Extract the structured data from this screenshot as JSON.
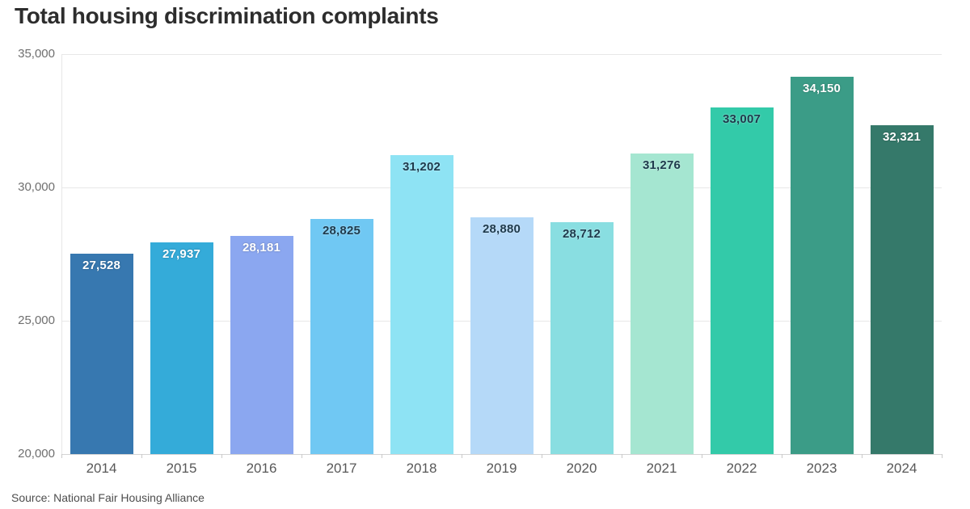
{
  "title": "Total housing discrimination complaints",
  "source": "Source: National Fair Housing Alliance",
  "chart_data": {
    "type": "bar",
    "title": "Total housing discrimination complaints",
    "xlabel": "",
    "ylabel": "",
    "categories": [
      "2014",
      "2015",
      "2016",
      "2017",
      "2018",
      "2019",
      "2020",
      "2021",
      "2022",
      "2023",
      "2024"
    ],
    "values": [
      27528,
      27937,
      28181,
      28825,
      31202,
      28880,
      28712,
      31276,
      33007,
      34150,
      32321
    ],
    "value_labels": [
      "27,528",
      "27,937",
      "28,181",
      "28,825",
      "31,202",
      "28,880",
      "28,712",
      "31,276",
      "33,007",
      "34,150",
      "32,321"
    ],
    "bar_colors": [
      "#3778b0",
      "#34abd9",
      "#8ba7f0",
      "#70c8f3",
      "#8ee3f4",
      "#b5d9f8",
      "#89dee1",
      "#a5e6d1",
      "#33caa9",
      "#3b9c87",
      "#35796a"
    ],
    "label_colors": [
      "#ffffff",
      "#ffffff",
      "#ffffff",
      "#1e3a4c",
      "#1e3a4c",
      "#1e3a4c",
      "#1e3a4c",
      "#1e3a4c",
      "#1e3a4c",
      "#ffffff",
      "#ffffff"
    ],
    "ylim": [
      20000,
      35000
    ],
    "yticks": [
      20000,
      25000,
      30000,
      35000
    ],
    "ytick_labels": [
      "20,000",
      "25,000",
      "30,000",
      "35,000"
    ],
    "grid": "horizontal",
    "legend": "none",
    "source_note": "Source: National Fair Housing Alliance"
  }
}
